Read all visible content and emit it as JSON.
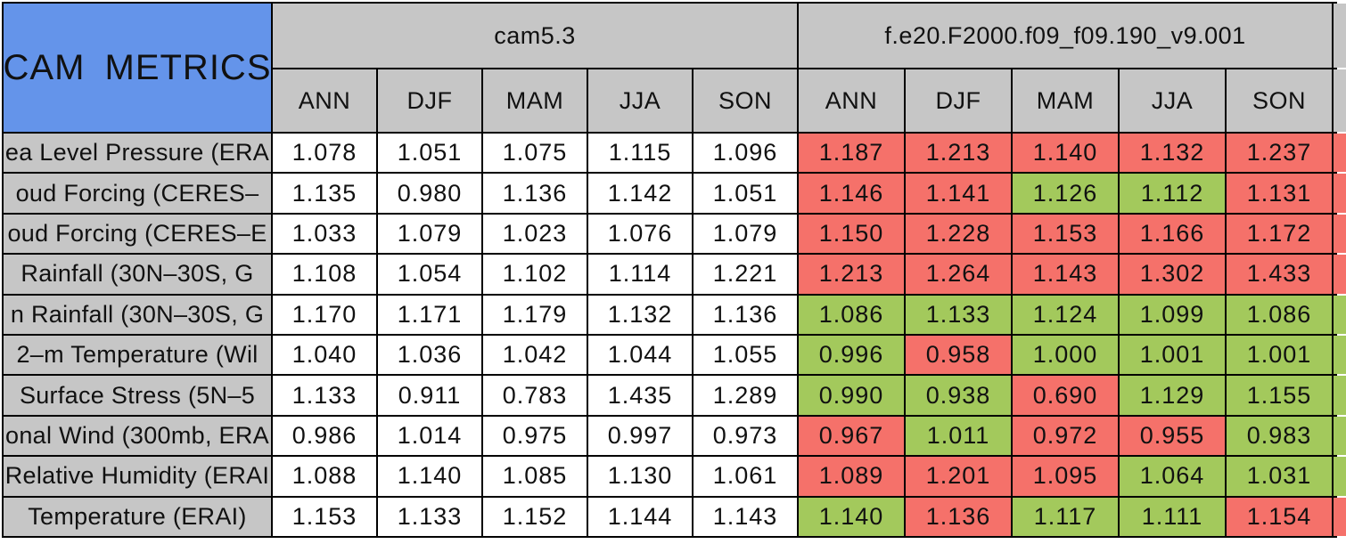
{
  "table": {
    "title": "CAM METRICS",
    "models": [
      "cam5.3",
      "f.e20.F2000.f09_f09.190_v9.001"
    ],
    "seasons": [
      "ANN",
      "DJF",
      "MAM",
      "JJA",
      "SON"
    ],
    "colors": {
      "title_bg": "#6494EA",
      "header_bg": "#C6C6C6",
      "better_bg": "#A3C95C",
      "worse_bg": "#F5716A",
      "neutral_bg": "#FFFFFF",
      "border": "#000000"
    }
  },
  "chart_data": {
    "type": "table",
    "title": "CAM METRICS",
    "column_groups": [
      {
        "label": "cam5.3",
        "span": 5
      },
      {
        "label": "f.e20.F2000.f09_f09.190_v9.001",
        "span": 5
      }
    ],
    "columns": [
      "ANN",
      "DJF",
      "MAM",
      "JJA",
      "SON",
      "ANN",
      "DJF",
      "MAM",
      "JJA",
      "SON"
    ],
    "legend": {
      "worse": "red cell",
      "better": "green cell",
      "baseline": "white cell"
    },
    "rows": [
      {
        "label": "ea Level Pressure (ERA",
        "model1_values": [
          "1.078",
          "1.051",
          "1.075",
          "1.115",
          "1.096"
        ],
        "model2_values": [
          "1.187",
          "1.213",
          "1.140",
          "1.132",
          "1.237"
        ],
        "model2_flags": [
          "worse",
          "worse",
          "worse",
          "worse",
          "worse"
        ],
        "overflow_flag": "worse"
      },
      {
        "label": "oud Forcing (CERES–",
        "model1_values": [
          "1.135",
          "0.980",
          "1.136",
          "1.142",
          "1.051"
        ],
        "model2_values": [
          "1.146",
          "1.141",
          "1.126",
          "1.112",
          "1.131"
        ],
        "model2_flags": [
          "worse",
          "worse",
          "better",
          "better",
          "worse"
        ],
        "overflow_flag": "worse"
      },
      {
        "label": "oud Forcing (CERES–E",
        "model1_values": [
          "1.033",
          "1.079",
          "1.023",
          "1.076",
          "1.079"
        ],
        "model2_values": [
          "1.150",
          "1.228",
          "1.153",
          "1.166",
          "1.172"
        ],
        "model2_flags": [
          "worse",
          "worse",
          "worse",
          "worse",
          "worse"
        ],
        "overflow_flag": "worse"
      },
      {
        "label": "Rainfall (30N–30S, G",
        "model1_values": [
          "1.108",
          "1.054",
          "1.102",
          "1.114",
          "1.221"
        ],
        "model2_values": [
          "1.213",
          "1.264",
          "1.143",
          "1.302",
          "1.433"
        ],
        "model2_flags": [
          "worse",
          "worse",
          "worse",
          "worse",
          "worse"
        ],
        "overflow_flag": "worse"
      },
      {
        "label": "n Rainfall (30N–30S, G",
        "model1_values": [
          "1.170",
          "1.171",
          "1.179",
          "1.132",
          "1.136"
        ],
        "model2_values": [
          "1.086",
          "1.133",
          "1.124",
          "1.099",
          "1.086"
        ],
        "model2_flags": [
          "better",
          "better",
          "better",
          "better",
          "better"
        ],
        "overflow_flag": "better"
      },
      {
        "label": "2–m Temperature (Wil",
        "model1_values": [
          "1.040",
          "1.036",
          "1.042",
          "1.044",
          "1.055"
        ],
        "model2_values": [
          "0.996",
          "0.958",
          "1.000",
          "1.001",
          "1.001"
        ],
        "model2_flags": [
          "better",
          "worse",
          "better",
          "better",
          "better"
        ],
        "overflow_flag": "better"
      },
      {
        "label": "Surface Stress (5N–5",
        "model1_values": [
          "1.133",
          "0.911",
          "0.783",
          "1.435",
          "1.289"
        ],
        "model2_values": [
          "0.990",
          "0.938",
          "0.690",
          "1.129",
          "1.155"
        ],
        "model2_flags": [
          "better",
          "better",
          "worse",
          "better",
          "better"
        ],
        "overflow_flag": "better"
      },
      {
        "label": "onal Wind (300mb, ERA",
        "model1_values": [
          "0.986",
          "1.014",
          "0.975",
          "0.997",
          "0.973"
        ],
        "model2_values": [
          "0.967",
          "1.011",
          "0.972",
          "0.955",
          "0.983"
        ],
        "model2_flags": [
          "worse",
          "better",
          "worse",
          "worse",
          "better"
        ],
        "overflow_flag": "better"
      },
      {
        "label": "Relative Humidity (ERAI",
        "model1_values": [
          "1.088",
          "1.140",
          "1.085",
          "1.130",
          "1.061"
        ],
        "model2_values": [
          "1.089",
          "1.201",
          "1.095",
          "1.064",
          "1.031"
        ],
        "model2_flags": [
          "worse",
          "worse",
          "worse",
          "better",
          "better"
        ],
        "overflow_flag": "better"
      },
      {
        "label": "Temperature (ERAI)",
        "model1_values": [
          "1.153",
          "1.133",
          "1.152",
          "1.144",
          "1.143"
        ],
        "model2_values": [
          "1.140",
          "1.136",
          "1.117",
          "1.111",
          "1.154"
        ],
        "model2_flags": [
          "better",
          "worse",
          "better",
          "better",
          "worse"
        ],
        "overflow_flag": "worse"
      }
    ]
  }
}
